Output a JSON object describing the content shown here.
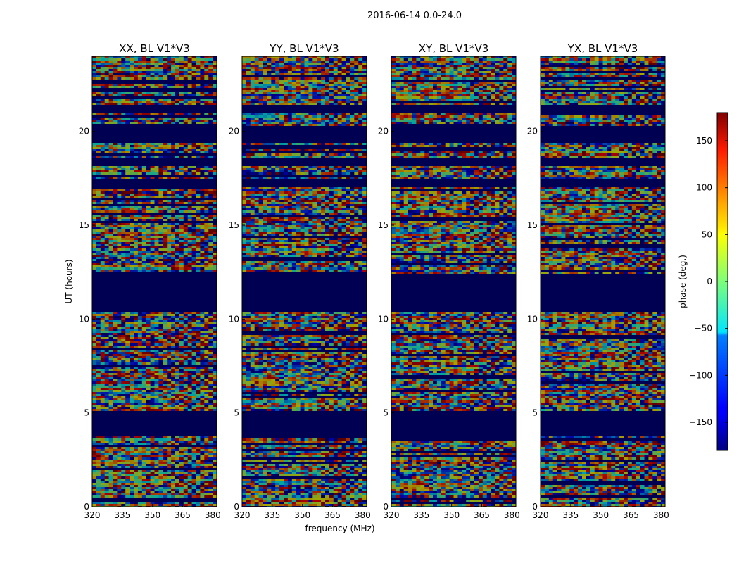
{
  "figure": {
    "suptitle": "2016-06-14 0.0-24.0",
    "xlabel": "frequency (MHz)",
    "ylabel": "UT (hours)"
  },
  "chart_data": {
    "type": "heatmap",
    "title": "2016-06-14 0.0-24.0",
    "xlabel": "frequency (MHz)",
    "ylabel": "UT (hours)",
    "xlim": [
      320,
      382
    ],
    "ylim": [
      0,
      24
    ],
    "xticks": [
      320,
      335,
      350,
      365,
      380
    ],
    "yticks": [
      0,
      5,
      10,
      15,
      20
    ],
    "panels": [
      {
        "title": "XX, BL V1*V3",
        "pol": "XX"
      },
      {
        "title": "YY, BL V1*V3",
        "pol": "YY"
      },
      {
        "title": "XY, BL V1*V3",
        "pol": "XY"
      },
      {
        "title": "YX, BL V1*V3",
        "pol": "YX"
      }
    ],
    "masked_bands_hours": [
      [
        3.8,
        5.2
      ],
      [
        10.5,
        12.5
      ],
      [
        17.1,
        17.5
      ],
      [
        18.2,
        18.6
      ],
      [
        19.4,
        20.3
      ],
      [
        21.0,
        21.5
      ]
    ],
    "colorbar": {
      "label": "phase (deg.)",
      "range": [
        -180,
        180
      ],
      "ticks": [
        -150,
        -100,
        -50,
        0,
        50,
        100,
        150
      ],
      "colormap": "jet"
    }
  },
  "colors": {
    "masked": "#00007f",
    "axis": "#000000"
  }
}
